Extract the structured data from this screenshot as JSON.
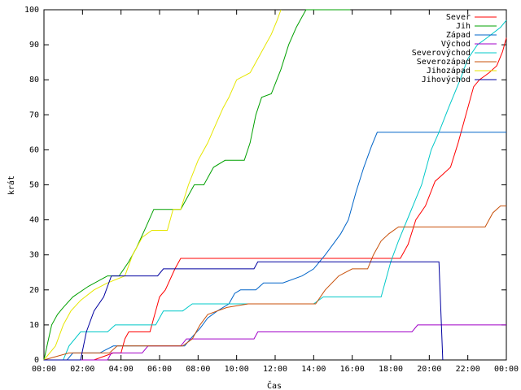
{
  "chart_data": {
    "type": "line",
    "xlabel": "Čas",
    "ylabel": "krát",
    "xlim": [
      0,
      24
    ],
    "ylim": [
      0,
      100
    ],
    "x_ticks": [
      "00:00",
      "02:00",
      "04:00",
      "06:00",
      "08:00",
      "10:00",
      "12:00",
      "14:00",
      "16:00",
      "18:00",
      "20:00",
      "22:00",
      "00:00"
    ],
    "y_ticks": [
      0,
      10,
      20,
      30,
      40,
      50,
      60,
      70,
      80,
      90,
      100
    ],
    "grid": false,
    "legend_position": "top-right",
    "series": [
      {
        "name": "Sever",
        "color": "#ff0000",
        "points": [
          [
            0,
            0
          ],
          [
            2.6,
            0
          ],
          [
            3.6,
            2
          ],
          [
            4.0,
            2
          ],
          [
            4.2,
            6
          ],
          [
            4.4,
            8
          ],
          [
            5.5,
            8
          ],
          [
            5.7,
            12
          ],
          [
            6.0,
            18
          ],
          [
            6.3,
            20
          ],
          [
            6.8,
            26
          ],
          [
            7.1,
            29
          ],
          [
            18.5,
            29
          ],
          [
            18.9,
            33
          ],
          [
            19.3,
            40
          ],
          [
            19.8,
            44
          ],
          [
            20.3,
            51
          ],
          [
            20.7,
            53
          ],
          [
            21.1,
            55
          ],
          [
            21.5,
            62
          ],
          [
            21.9,
            70
          ],
          [
            22.3,
            78
          ],
          [
            22.6,
            80
          ],
          [
            23.1,
            82
          ],
          [
            23.5,
            84
          ],
          [
            23.8,
            88
          ],
          [
            24.0,
            92
          ]
        ]
      },
      {
        "name": "Jih",
        "color": "#00a000",
        "points": [
          [
            0,
            0
          ],
          [
            0.2,
            5
          ],
          [
            0.4,
            10
          ],
          [
            0.7,
            13
          ],
          [
            1.0,
            15
          ],
          [
            1.5,
            18
          ],
          [
            2.3,
            21
          ],
          [
            3.3,
            24
          ],
          [
            3.9,
            24
          ],
          [
            4.4,
            28
          ],
          [
            4.8,
            32
          ],
          [
            5.3,
            38
          ],
          [
            5.7,
            43
          ],
          [
            7.1,
            43
          ],
          [
            7.4,
            46
          ],
          [
            7.8,
            50
          ],
          [
            8.3,
            50
          ],
          [
            8.8,
            55
          ],
          [
            9.4,
            57
          ],
          [
            10.4,
            57
          ],
          [
            10.7,
            62
          ],
          [
            11.0,
            70
          ],
          [
            11.3,
            75
          ],
          [
            11.8,
            76
          ],
          [
            12.3,
            83
          ],
          [
            12.7,
            90
          ],
          [
            13.1,
            95
          ],
          [
            13.4,
            98
          ],
          [
            13.6,
            100
          ],
          [
            15.9,
            100
          ]
        ]
      },
      {
        "name": "Západ",
        "color": "#0064c8",
        "points": [
          [
            0,
            0
          ],
          [
            1.2,
            0
          ],
          [
            1.5,
            2
          ],
          [
            2.9,
            2
          ],
          [
            3.6,
            4
          ],
          [
            7.3,
            4
          ],
          [
            7.6,
            6
          ],
          [
            8.1,
            9
          ],
          [
            8.5,
            12
          ],
          [
            9.0,
            14
          ],
          [
            9.6,
            16
          ],
          [
            9.9,
            19
          ],
          [
            10.2,
            20
          ],
          [
            11.0,
            20
          ],
          [
            11.4,
            22
          ],
          [
            12.4,
            22
          ],
          [
            13.4,
            24
          ],
          [
            14.0,
            26
          ],
          [
            14.6,
            30
          ],
          [
            15.0,
            33
          ],
          [
            15.4,
            36
          ],
          [
            15.8,
            40
          ],
          [
            16.2,
            48
          ],
          [
            16.6,
            55
          ],
          [
            17.0,
            61
          ],
          [
            17.3,
            65
          ],
          [
            24.0,
            65
          ]
        ]
      },
      {
        "name": "Východ",
        "color": "#a000c8",
        "points": [
          [
            0,
            0
          ],
          [
            3.3,
            0
          ],
          [
            3.5,
            2
          ],
          [
            5.1,
            2
          ],
          [
            5.4,
            4
          ],
          [
            7.1,
            4
          ],
          [
            7.4,
            6
          ],
          [
            10.9,
            6
          ],
          [
            11.1,
            8
          ],
          [
            19.1,
            8
          ],
          [
            19.4,
            10
          ],
          [
            24.0,
            10
          ]
        ]
      },
      {
        "name": "Severovýchod",
        "color": "#00c8c8",
        "points": [
          [
            0,
            0
          ],
          [
            1.0,
            0
          ],
          [
            1.3,
            4
          ],
          [
            1.9,
            8
          ],
          [
            3.3,
            8
          ],
          [
            3.7,
            10
          ],
          [
            5.8,
            10
          ],
          [
            6.2,
            14
          ],
          [
            7.2,
            14
          ],
          [
            7.7,
            16
          ],
          [
            14.0,
            16
          ],
          [
            14.5,
            18
          ],
          [
            17.5,
            18
          ],
          [
            18.0,
            28
          ],
          [
            18.4,
            34
          ],
          [
            19.0,
            42
          ],
          [
            19.6,
            50
          ],
          [
            20.1,
            60
          ],
          [
            20.5,
            65
          ],
          [
            21.0,
            72
          ],
          [
            21.6,
            80
          ],
          [
            22.0,
            86
          ],
          [
            22.5,
            90
          ],
          [
            23.0,
            92
          ],
          [
            23.7,
            95
          ],
          [
            24.0,
            97
          ]
        ]
      },
      {
        "name": "Severozápad",
        "color": "#c8500a",
        "points": [
          [
            0,
            0
          ],
          [
            1.3,
            2
          ],
          [
            3.4,
            2
          ],
          [
            3.8,
            4
          ],
          [
            7.2,
            4
          ],
          [
            7.7,
            6
          ],
          [
            8.1,
            10
          ],
          [
            8.5,
            13
          ],
          [
            9.0,
            14
          ],
          [
            9.5,
            15
          ],
          [
            10.6,
            16
          ],
          [
            14.1,
            16
          ],
          [
            14.6,
            20
          ],
          [
            15.3,
            24
          ],
          [
            16.0,
            26
          ],
          [
            16.8,
            26
          ],
          [
            17.1,
            30
          ],
          [
            17.5,
            34
          ],
          [
            17.9,
            36
          ],
          [
            18.4,
            38
          ],
          [
            22.9,
            38
          ],
          [
            23.3,
            42
          ],
          [
            23.7,
            44
          ],
          [
            24.0,
            44
          ]
        ]
      },
      {
        "name": "Jihozápad",
        "color": "#e6e600",
        "points": [
          [
            0,
            0
          ],
          [
            0.6,
            4
          ],
          [
            1.0,
            10
          ],
          [
            1.4,
            14
          ],
          [
            1.9,
            17
          ],
          [
            2.6,
            20
          ],
          [
            3.3,
            22
          ],
          [
            4.2,
            24
          ],
          [
            4.6,
            30
          ],
          [
            5.1,
            35
          ],
          [
            5.6,
            37
          ],
          [
            6.4,
            37
          ],
          [
            6.7,
            43
          ],
          [
            7.1,
            43
          ],
          [
            7.5,
            50
          ],
          [
            8.0,
            57
          ],
          [
            8.5,
            62
          ],
          [
            8.9,
            67
          ],
          [
            9.3,
            72
          ],
          [
            9.6,
            75
          ],
          [
            10.0,
            80
          ],
          [
            10.7,
            82
          ],
          [
            11.3,
            88
          ],
          [
            11.8,
            93
          ],
          [
            12.1,
            97
          ],
          [
            12.3,
            100
          ]
        ]
      },
      {
        "name": "Jihovýchod",
        "color": "#0000a0",
        "points": [
          [
            0,
            0
          ],
          [
            1.9,
            0
          ],
          [
            2.2,
            8
          ],
          [
            2.6,
            14
          ],
          [
            3.1,
            18
          ],
          [
            3.5,
            24
          ],
          [
            5.9,
            24
          ],
          [
            6.2,
            26
          ],
          [
            10.9,
            26
          ],
          [
            11.1,
            28
          ],
          [
            20.5,
            28
          ],
          [
            20.7,
            0
          ]
        ]
      }
    ]
  }
}
